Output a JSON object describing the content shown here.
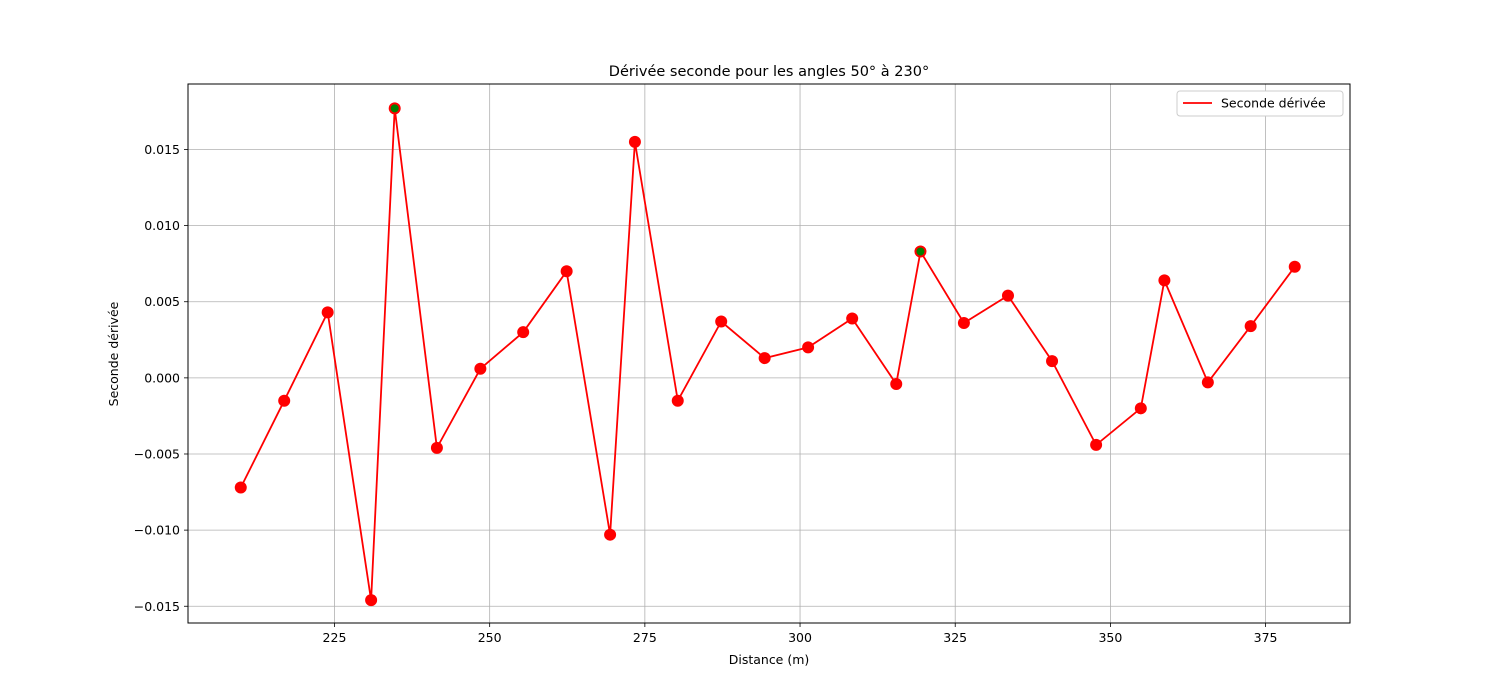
{
  "chart_data": {
    "type": "line",
    "title": "Dérivée seconde pour les angles 50° à 230°",
    "xlabel": "Distance (m)",
    "ylabel": "Seconde dérivée",
    "xlim": [
      201.4,
      388.6
    ],
    "ylim": [
      -0.0161,
      0.0193
    ],
    "x_ticks": [
      225,
      250,
      275,
      300,
      325,
      350,
      375
    ],
    "y_ticks": [
      -0.015,
      -0.01,
      -0.005,
      0.0,
      0.005,
      0.01,
      0.015
    ],
    "x_tick_labels": [
      "225",
      "250",
      "275",
      "300",
      "325",
      "350",
      "375"
    ],
    "y_tick_labels": [
      "−0.015",
      "−0.010",
      "−0.005",
      "0.000",
      "0.005",
      "0.010",
      "0.015"
    ],
    "grid": true,
    "legend_position": "top-right",
    "series": [
      {
        "name": "Seconde dérivée",
        "color": "#ff0000",
        "x": [
          209.9,
          216.9,
          223.9,
          230.9,
          234.7,
          241.5,
          248.5,
          255.4,
          262.4,
          269.4,
          273.4,
          280.3,
          287.3,
          294.3,
          301.3,
          308.4,
          315.5,
          319.4,
          326.4,
          333.5,
          340.6,
          347.7,
          354.9,
          358.7,
          365.7,
          372.6,
          379.7
        ],
        "values": [
          -0.0072,
          -0.0015,
          0.0043,
          -0.0146,
          0.0177,
          -0.0046,
          0.0006,
          0.003,
          0.007,
          -0.0103,
          0.0155,
          -0.0015,
          0.0037,
          0.0013,
          0.002,
          0.0039,
          -0.0004,
          0.0083,
          0.0036,
          0.0054,
          0.0011,
          -0.0044,
          -0.002,
          0.0064,
          -0.0003,
          0.0034,
          0.0073
        ]
      }
    ],
    "highlight_points": {
      "color": "#008000",
      "x": [
        234.7,
        319.4
      ],
      "values": [
        0.0177,
        0.0083
      ]
    }
  }
}
